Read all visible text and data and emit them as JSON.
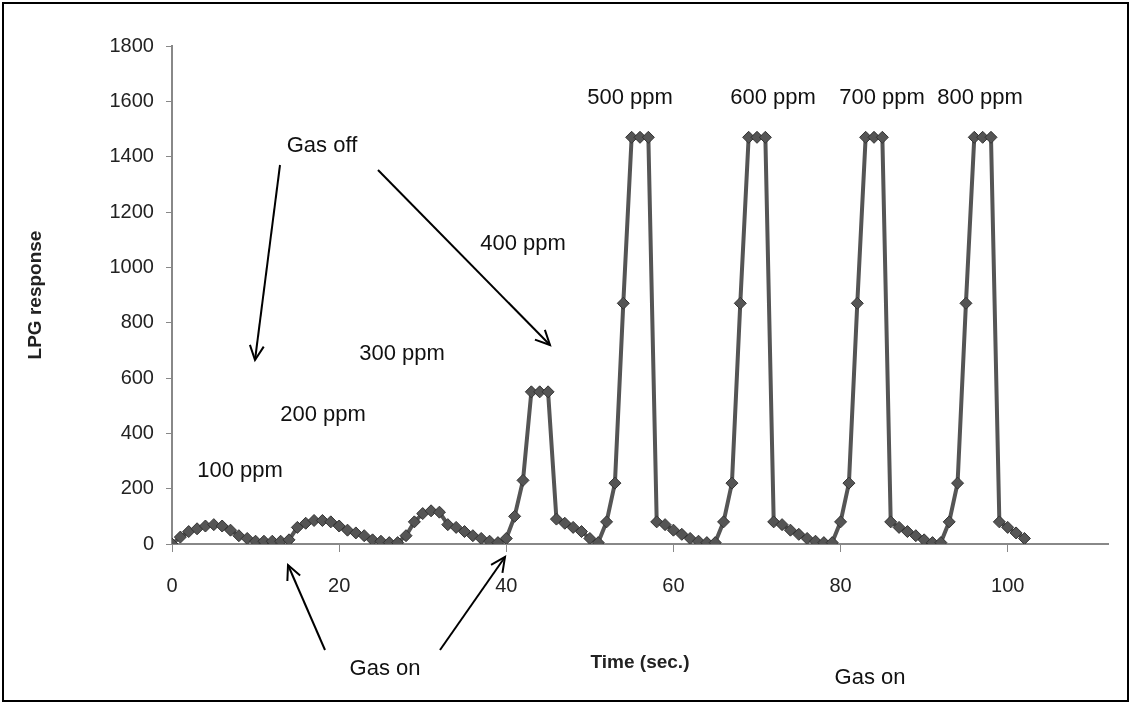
{
  "chart_data": {
    "type": "line",
    "xlabel": "Time (sec.)",
    "ylabel": "LPG response",
    "x": [
      0,
      1,
      2,
      3,
      4,
      5,
      6,
      7,
      8,
      9,
      10,
      11,
      12,
      13,
      14,
      15,
      16,
      17,
      18,
      19,
      20,
      21,
      22,
      23,
      24,
      25,
      26,
      27,
      28,
      29,
      30,
      31,
      32,
      33,
      34,
      35,
      36,
      37,
      38,
      39,
      40,
      41,
      42,
      43,
      44,
      45,
      46,
      47,
      48,
      49,
      50,
      51,
      52,
      53,
      54,
      55,
      56,
      57,
      58,
      59,
      60,
      61,
      62,
      63,
      64,
      65,
      66,
      67,
      68,
      69,
      70,
      71,
      72,
      73,
      74,
      75,
      76,
      77,
      78,
      79,
      80,
      81,
      82,
      83,
      84,
      85,
      86,
      87,
      88,
      89,
      90,
      91,
      92,
      93,
      94,
      95,
      96,
      97,
      98,
      99,
      100,
      101,
      102
    ],
    "series": [
      {
        "color": "#555555",
        "values": [
          0,
          25,
          45,
          55,
          65,
          70,
          65,
          50,
          30,
          20,
          10,
          10,
          10,
          10,
          15,
          60,
          75,
          85,
          85,
          80,
          65,
          50,
          40,
          30,
          15,
          10,
          5,
          5,
          30,
          80,
          110,
          120,
          115,
          70,
          60,
          45,
          30,
          20,
          10,
          5,
          20,
          100,
          230,
          550,
          550,
          550,
          90,
          75,
          60,
          45,
          20,
          5,
          80,
          220,
          870,
          1470,
          1470,
          1470,
          80,
          70,
          50,
          35,
          20,
          10,
          5,
          5,
          80,
          220,
          870,
          1470,
          1470,
          1470,
          80,
          70,
          50,
          35,
          20,
          10,
          5,
          5,
          80,
          220,
          870,
          1470,
          1470,
          1470,
          80,
          60,
          45,
          30,
          15,
          5,
          5,
          80,
          220,
          870,
          1470,
          1470,
          1470,
          80,
          60,
          40,
          20
        ]
      }
    ],
    "xlim": [
      0,
      112
    ],
    "xticks": [
      0,
      20,
      40,
      60,
      80,
      100
    ],
    "ylim": [
      0,
      1800
    ],
    "yticks": [
      0,
      200,
      400,
      600,
      800,
      1000,
      1200,
      1400,
      1600,
      1800
    ],
    "grid": false,
    "legend": false,
    "marker": "diamond",
    "line_style": "solid",
    "annotations": [
      "Gas off",
      "100 ppm",
      "200 ppm",
      "300 ppm",
      "400 ppm",
      "500 ppm",
      "600 ppm",
      "700 ppm",
      "800 ppm",
      "Gas on",
      "Gas on"
    ]
  }
}
